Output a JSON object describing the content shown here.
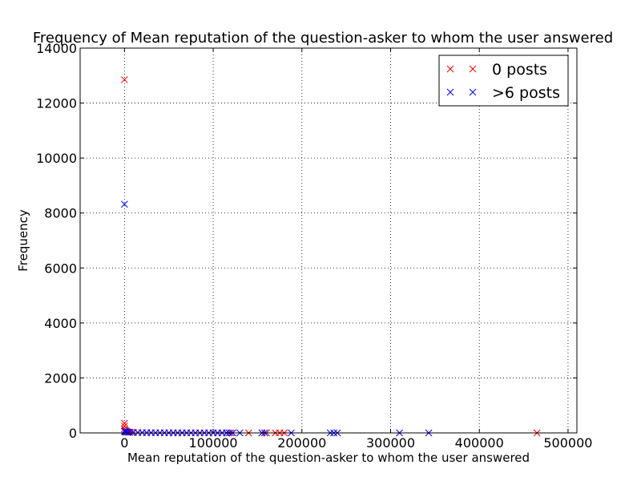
{
  "chart_data": {
    "type": "scatter",
    "title": "Frequency of Mean reputation of the question-asker to whom the user answered",
    "xlabel": "Mean reputation of the question-asker to whom the user answered",
    "ylabel": "Frequency",
    "xlim": [
      -50000,
      510000
    ],
    "ylim": [
      0,
      14000
    ],
    "xticks": [
      0,
      100000,
      200000,
      300000,
      400000,
      500000
    ],
    "xtick_labels": [
      "0",
      "100000",
      "200000",
      "300000",
      "400000",
      "500000"
    ],
    "yticks": [
      0,
      2000,
      4000,
      6000,
      8000,
      10000,
      12000,
      14000
    ],
    "ytick_labels": [
      "0",
      "2000",
      "4000",
      "6000",
      "8000",
      "10000",
      "12000",
      "14000"
    ],
    "grid": true,
    "legend_position": "upper right",
    "marker": "x",
    "series": [
      {
        "name": "0 posts",
        "color": "#ff0000",
        "x": [
          0,
          0,
          0,
          0,
          500,
          1000,
          2000,
          3000,
          5000,
          8000,
          10000,
          15000,
          20000,
          25000,
          30000,
          35000,
          40000,
          45000,
          50000,
          55000,
          60000,
          65000,
          70000,
          75000,
          80000,
          85000,
          90000,
          95000,
          100000,
          105000,
          110000,
          115000,
          120000,
          140000,
          155000,
          160000,
          170000,
          175000,
          180000,
          465000
        ],
        "y": [
          12850,
          350,
          250,
          150,
          100,
          80,
          60,
          40,
          30,
          25,
          20,
          15,
          10,
          8,
          6,
          5,
          5,
          4,
          4,
          3,
          3,
          2,
          2,
          2,
          1,
          1,
          1,
          1,
          1,
          1,
          1,
          1,
          1,
          1,
          1,
          1,
          1,
          1,
          1,
          1
        ]
      },
      {
        "name": ">6 posts",
        "color": "#0000ff",
        "x": [
          0,
          0,
          500,
          1000,
          2000,
          4000,
          6000,
          10000,
          15000,
          20000,
          25000,
          30000,
          35000,
          40000,
          45000,
          50000,
          55000,
          60000,
          65000,
          70000,
          75000,
          80000,
          85000,
          90000,
          95000,
          100000,
          105000,
          110000,
          115000,
          118000,
          122000,
          130000,
          155000,
          158000,
          188000,
          232000,
          236000,
          240000,
          310000,
          343000
        ],
        "y": [
          8320,
          60,
          50,
          40,
          30,
          25,
          20,
          15,
          12,
          10,
          8,
          7,
          6,
          5,
          5,
          4,
          4,
          3,
          3,
          3,
          2,
          2,
          2,
          2,
          2,
          1,
          1,
          1,
          1,
          1,
          1,
          1,
          1,
          1,
          1,
          1,
          1,
          1,
          1,
          1
        ]
      }
    ]
  }
}
